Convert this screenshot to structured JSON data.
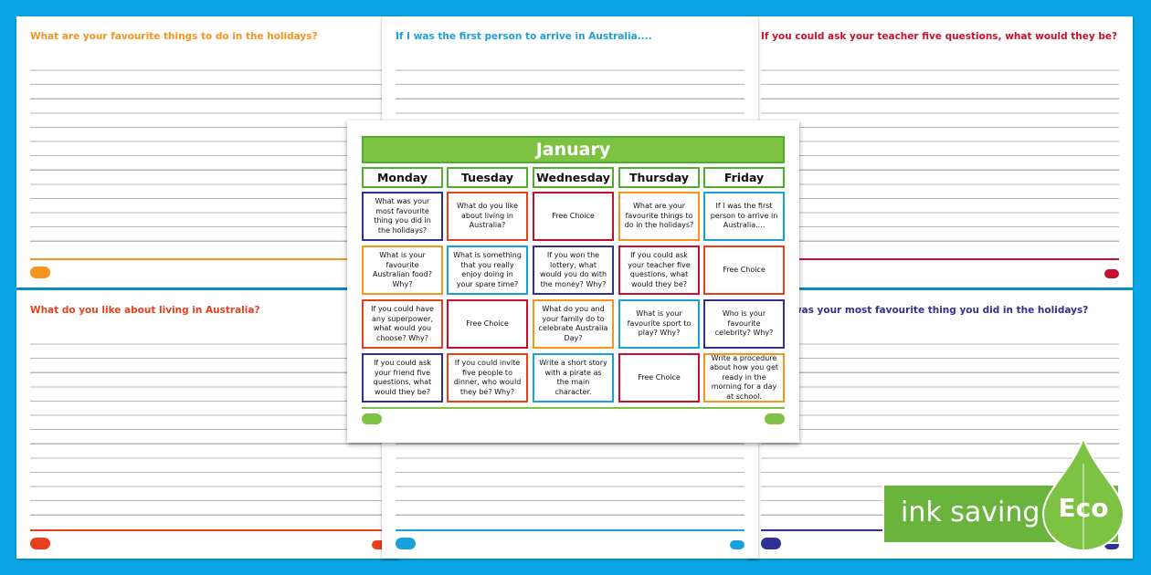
{
  "sheets": [
    {
      "title": "What are your favourite things to do in the holidays?",
      "color": "#f7941d"
    },
    {
      "title": "If I was the first person to arrive in Australia....",
      "color": "#1ca0dc"
    },
    {
      "title": "If you could ask your teacher five questions, what would they be?",
      "color": "#c8102e"
    },
    {
      "title": "What do you like about living in Australia?",
      "color": "#e8401c"
    },
    {
      "title": "",
      "color": "#1ca0dc"
    },
    {
      "title": "What was your most favourite thing you did in the holidays?",
      "color": "#2e3192"
    }
  ],
  "calendar": {
    "month": "January",
    "days": [
      "Monday",
      "Tuesday",
      "Wednesday",
      "Thursday",
      "Friday"
    ],
    "rows": [
      [
        {
          "text": "What was your most favourite thing you did in the holidays?",
          "color": "#2e3192"
        },
        {
          "text": "What do you like about living in Australia?",
          "color": "#e8401c"
        },
        {
          "text": "Free Choice",
          "color": "#c8102e"
        },
        {
          "text": "What are your favourite things to do in the holidays?",
          "color": "#f7941d"
        },
        {
          "text": "If I was the first person to arrive in Australia....",
          "color": "#1ca0dc"
        }
      ],
      [
        {
          "text": "What is your favourite Australian food? Why?",
          "color": "#f7941d"
        },
        {
          "text": "What is something that you really enjoy doing in your spare time?",
          "color": "#1ca0dc"
        },
        {
          "text": "If you won the lottery, what would you do with the money? Why?",
          "color": "#2e3192"
        },
        {
          "text": "If you could ask your teacher five questions, what would they be?",
          "color": "#c8102e"
        },
        {
          "text": "Free Choice",
          "color": "#e8401c"
        }
      ],
      [
        {
          "text": "If you could have any superpower, what would you choose? Why?",
          "color": "#e8401c"
        },
        {
          "text": "Free Choice",
          "color": "#c8102e"
        },
        {
          "text": "What do you and your family do to celebrate Australia Day?",
          "color": "#f7941d"
        },
        {
          "text": "What is your favourite sport to play? Why?",
          "color": "#1ca0dc"
        },
        {
          "text": "Who is your favourite celebrity? Why?",
          "color": "#2e3192"
        }
      ],
      [
        {
          "text": "If you could ask your friend five questions, what would they be?",
          "color": "#2e3192"
        },
        {
          "text": "If you could invite five people to dinner, who would they be? Why?",
          "color": "#e8401c"
        },
        {
          "text": "Write a short story with a pirate as the main character.",
          "color": "#1ca0dc"
        },
        {
          "text": "Free Choice",
          "color": "#c8102e"
        },
        {
          "text": "Write a procedure about how you get ready in the morning for a day at school.",
          "color": "#f7941d"
        }
      ]
    ]
  },
  "badge": {
    "label": "ink saving",
    "eco": "Eco",
    "color": "#6ab43e"
  }
}
